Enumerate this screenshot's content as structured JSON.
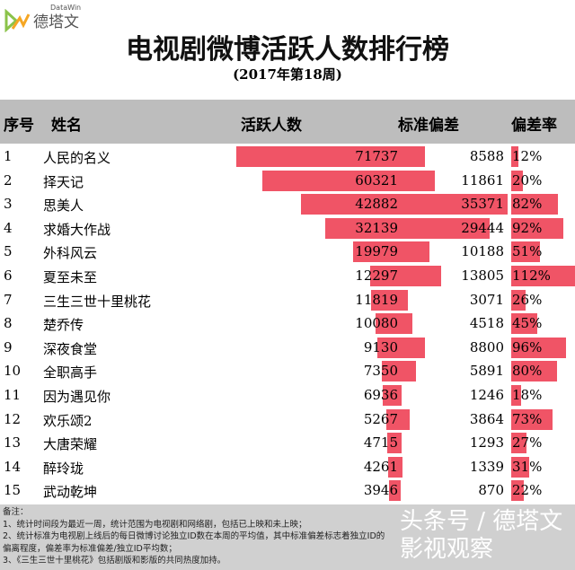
{
  "logo": {
    "cn": "德塔文",
    "en": "DataWin"
  },
  "title": "电视剧微博活跃人数排行榜",
  "subtitle": "(2017年第18周)",
  "headers": {
    "rank": "序号",
    "name": "姓名",
    "active": "活跃人数",
    "std": "标准偏差",
    "rate": "偏差率"
  },
  "bar_color": "#ef4b5e",
  "rows": [
    {
      "rank": "1",
      "name": "人民的名义",
      "active": 71737,
      "std": 8588,
      "rate": "12%"
    },
    {
      "rank": "2",
      "name": "择天记",
      "active": 60321,
      "std": 11861,
      "rate": "20%"
    },
    {
      "rank": "3",
      "name": "思美人",
      "active": 42882,
      "std": 35371,
      "rate": "82%"
    },
    {
      "rank": "4",
      "name": "求婚大作战",
      "active": 32139,
      "std": 29444,
      "rate": "92%"
    },
    {
      "rank": "5",
      "name": "外科风云",
      "active": 19979,
      "std": 10188,
      "rate": "51%"
    },
    {
      "rank": "6",
      "name": "夏至未至",
      "active": 12297,
      "std": 13805,
      "rate": "112%"
    },
    {
      "rank": "7",
      "name": "三生三世十里桃花",
      "active": 11819,
      "std": 3071,
      "rate": "26%"
    },
    {
      "rank": "8",
      "name": "楚乔传",
      "active": 10080,
      "std": 4518,
      "rate": "45%"
    },
    {
      "rank": "9",
      "name": "深夜食堂",
      "active": 9130,
      "std": 8800,
      "rate": "96%"
    },
    {
      "rank": "10",
      "name": "全职高手",
      "active": 7350,
      "std": 5891,
      "rate": "80%"
    },
    {
      "rank": "11",
      "name": "因为遇见你",
      "active": 6936,
      "std": 1246,
      "rate": "18%"
    },
    {
      "rank": "12",
      "name": "欢乐颂2",
      "active": 5267,
      "std": 3864,
      "rate": "73%"
    },
    {
      "rank": "13",
      "name": "大唐荣耀",
      "active": 4715,
      "std": 1293,
      "rate": "27%"
    },
    {
      "rank": "14",
      "name": "醉玲珑",
      "active": 4261,
      "std": 1339,
      "rate": "31%"
    },
    {
      "rank": "15",
      "name": "武动乾坤",
      "active": 3946,
      "std": 870,
      "rate": "22%"
    }
  ],
  "notes": [
    "备注：",
    "1、统计时间段为最近一周，统计范围为电视剧和网络剧，包括已上映和未上映；",
    "2、统计标准为电视剧上线后的每日微博讨论独立ID数在本周的平均值，其中标准偏差标志着独立ID的偏离程度，偏差率为标准偏差/独立ID平均数；",
    "3、《三生三世十里桃花》包括剧版和影版的共同热度加持。"
  ],
  "watermark": "头条号 / 德塔文影视观察"
}
